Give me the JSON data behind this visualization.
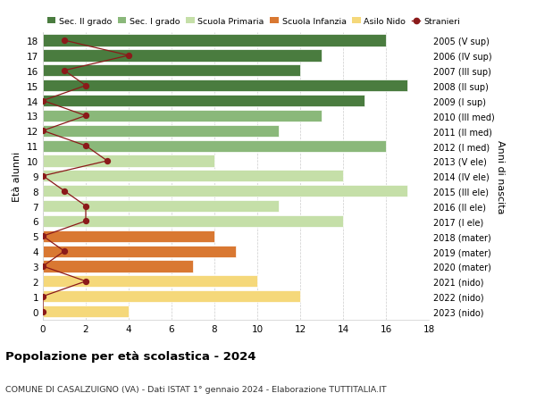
{
  "ages": [
    18,
    17,
    16,
    15,
    14,
    13,
    12,
    11,
    10,
    9,
    8,
    7,
    6,
    5,
    4,
    3,
    2,
    1,
    0
  ],
  "right_labels": [
    "2005 (V sup)",
    "2006 (IV sup)",
    "2007 (III sup)",
    "2008 (II sup)",
    "2009 (I sup)",
    "2010 (III med)",
    "2011 (II med)",
    "2012 (I med)",
    "2013 (V ele)",
    "2014 (IV ele)",
    "2015 (III ele)",
    "2016 (II ele)",
    "2017 (I ele)",
    "2018 (mater)",
    "2019 (mater)",
    "2020 (mater)",
    "2021 (nido)",
    "2022 (nido)",
    "2023 (nido)"
  ],
  "bar_values": [
    16,
    13,
    12,
    17,
    15,
    13,
    11,
    16,
    8,
    14,
    17,
    11,
    14,
    8,
    9,
    7,
    10,
    12,
    4
  ],
  "bar_colors": [
    "#4a7c3f",
    "#4a7c3f",
    "#4a7c3f",
    "#4a7c3f",
    "#4a7c3f",
    "#8ab87a",
    "#8ab87a",
    "#8ab87a",
    "#c5dfa8",
    "#c5dfa8",
    "#c5dfa8",
    "#c5dfa8",
    "#c5dfa8",
    "#d97832",
    "#d97832",
    "#d97832",
    "#f5d87a",
    "#f5d87a",
    "#f5d87a"
  ],
  "stranieri_values": [
    1,
    4,
    1,
    2,
    0,
    2,
    0,
    2,
    3,
    0,
    1,
    2,
    2,
    0,
    1,
    0,
    2,
    0,
    0
  ],
  "title": "Popolazione per età scolastica - 2024",
  "subtitle": "COMUNE DI CASALZUIGNO (VA) - Dati ISTAT 1° gennaio 2024 - Elaborazione TUTTITALIA.IT",
  "ylabel": "Età alunni",
  "ylabel_right": "Anni di nascita",
  "xlim": [
    0,
    18
  ],
  "legend_items": [
    {
      "label": "Sec. II grado",
      "color": "#4a7c3f"
    },
    {
      "label": "Sec. I grado",
      "color": "#8ab87a"
    },
    {
      "label": "Scuola Primaria",
      "color": "#c5dfa8"
    },
    {
      "label": "Scuola Infanzia",
      "color": "#d97832"
    },
    {
      "label": "Asilo Nido",
      "color": "#f5d87a"
    },
    {
      "label": "Stranieri",
      "color": "#8b1a1a"
    }
  ],
  "bg_color": "#ffffff",
  "grid_color": "#cccccc",
  "bar_height": 0.78
}
